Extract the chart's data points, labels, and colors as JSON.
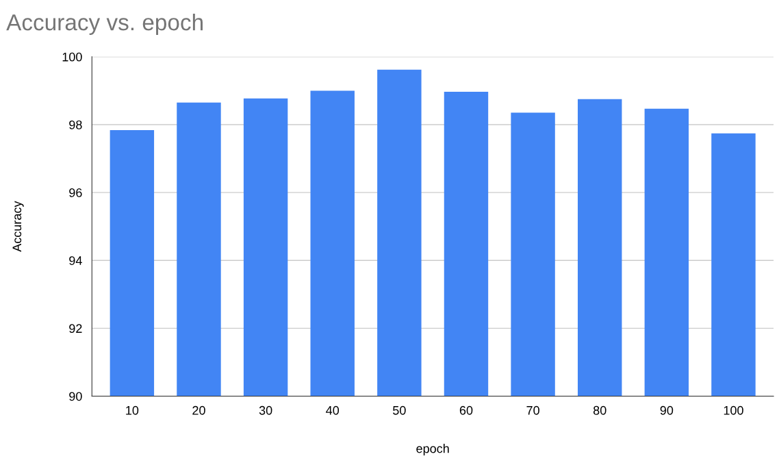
{
  "chart_data": {
    "type": "bar",
    "title": "Accuracy vs. epoch",
    "xlabel": "epoch",
    "ylabel": "Accuracy",
    "categories": [
      "10",
      "20",
      "30",
      "40",
      "50",
      "60",
      "70",
      "80",
      "90",
      "100"
    ],
    "values": [
      97.84,
      98.65,
      98.77,
      99.0,
      99.62,
      98.97,
      98.35,
      98.75,
      98.47,
      97.74
    ],
    "color": "#4285f4",
    "ylim": [
      90,
      100
    ],
    "yticks": [
      90,
      92,
      94,
      96,
      98,
      100
    ],
    "grid": "y"
  }
}
